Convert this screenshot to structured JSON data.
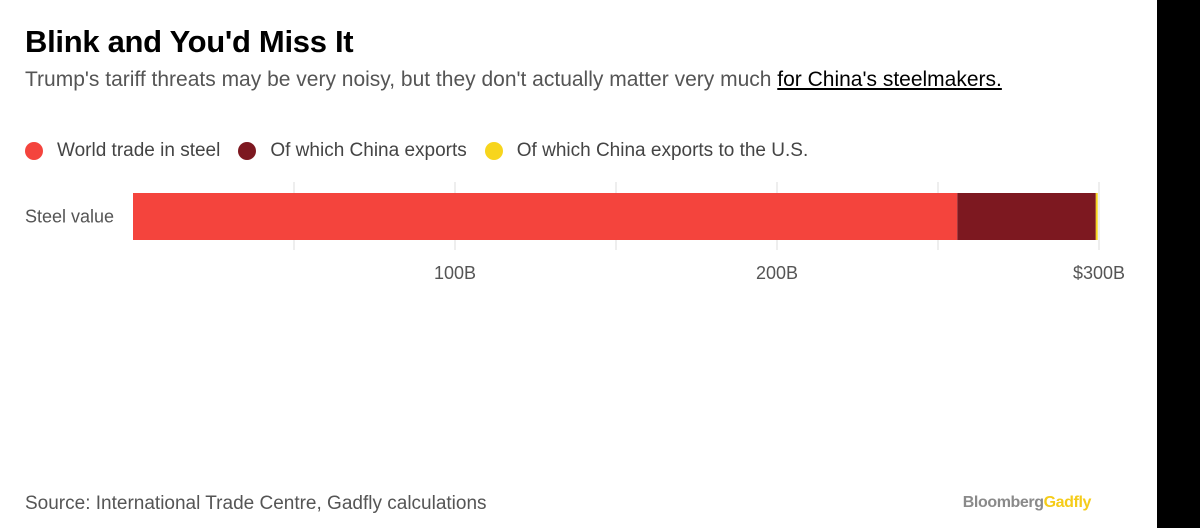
{
  "title": "Blink and You'd Miss It",
  "subtitle": {
    "text": "Trump's tariff threats may be very noisy, but they don't actually matter very much ",
    "link": "for China's steelmakers."
  },
  "source": "Source: International Trade Centre, Gadfly calculations",
  "brand": {
    "part1": "Bloomberg",
    "part2": "Gadfly"
  },
  "chart_data": {
    "type": "bar",
    "orientation": "horizontal",
    "stacked": true,
    "title": "Blink and You'd Miss It",
    "categories": [
      "Steel value"
    ],
    "series": [
      {
        "name": "World trade in steel",
        "values": [
          256
        ],
        "color": "#f4443d"
      },
      {
        "name": "Of which China exports",
        "values": [
          43
        ],
        "color": "#7d1820"
      },
      {
        "name": "Of which China exports to the U.S.",
        "values": [
          0.6
        ],
        "color": "#f7d51d"
      }
    ],
    "xlim": [
      0,
      300
    ],
    "xticks": [
      50,
      100,
      150,
      200,
      250,
      300
    ],
    "xtick_labels": {
      "100": "100B",
      "200": "200B",
      "300": "$300B"
    },
    "grid": true,
    "legend_position": "top-left"
  }
}
